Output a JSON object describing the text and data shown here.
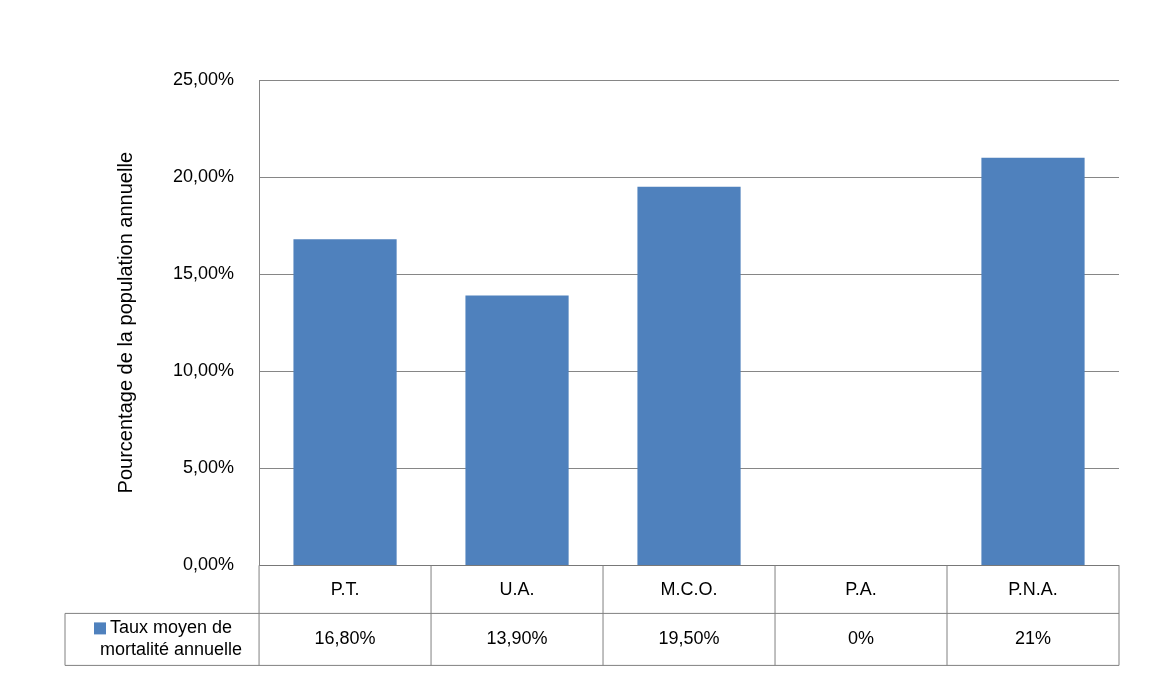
{
  "chart_data": {
    "type": "bar",
    "ylabel": "Pourcentage de la population annuelle",
    "categories": [
      "P.T.",
      "U.A.",
      "M.C.O.",
      "P.A.",
      "P.N.A."
    ],
    "series": [
      {
        "name": "Taux moyen de mortalité annuelle",
        "color": "#4f81bd",
        "values": [
          16.8,
          13.9,
          19.5,
          0,
          21
        ],
        "value_labels": [
          "16,80%",
          "13,90%",
          "19,50%",
          "0%",
          "21%"
        ]
      }
    ],
    "ylim": [
      0,
      25
    ],
    "yticks": [
      {
        "value": 0,
        "label": "0,00%"
      },
      {
        "value": 5,
        "label": "5,00%"
      },
      {
        "value": 10,
        "label": "10,00%"
      },
      {
        "value": 15,
        "label": "15,00%"
      },
      {
        "value": 20,
        "label": "20,00%"
      },
      {
        "value": 25,
        "label": "25,00%"
      }
    ],
    "grid": "y",
    "legend": "bottom left"
  }
}
